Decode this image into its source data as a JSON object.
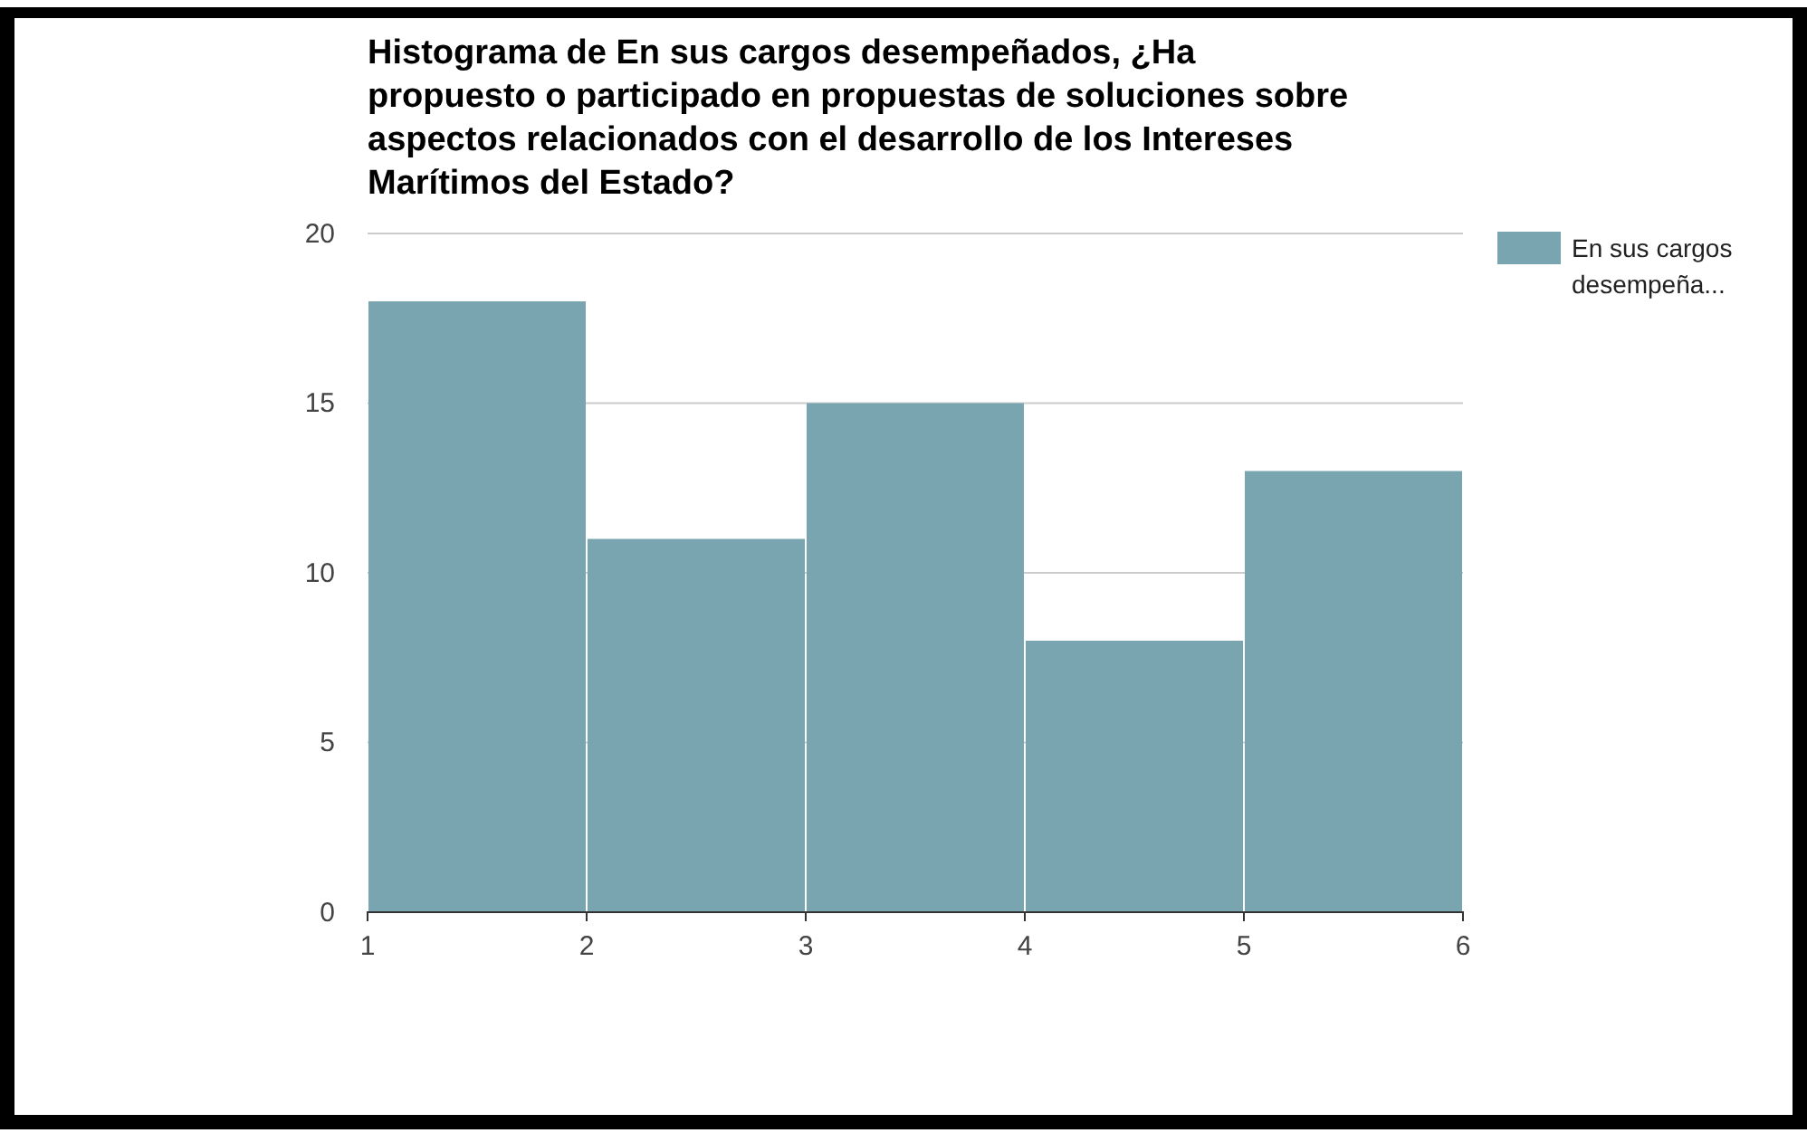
{
  "chart_data": {
    "type": "histogram",
    "title": "Histograma de En sus cargos desempeñados, ¿Ha propuesto o participado en propuestas de soluciones sobre aspectos relacionados con el desarrollo de los Intereses Marítimos del Estado?",
    "bins": [
      1,
      2,
      3,
      4,
      5,
      6
    ],
    "series": [
      {
        "name": "En sus cargos desempeña...",
        "color": "#78a5b0",
        "values": [
          18,
          11,
          15,
          8,
          13
        ]
      }
    ],
    "xlim": [
      1,
      6
    ],
    "xticks": [
      1,
      2,
      3,
      4,
      5,
      6
    ],
    "ylim": [
      0,
      20
    ],
    "yticks": [
      0,
      5,
      10,
      15,
      20
    ],
    "grid": "y",
    "legend": "right"
  }
}
